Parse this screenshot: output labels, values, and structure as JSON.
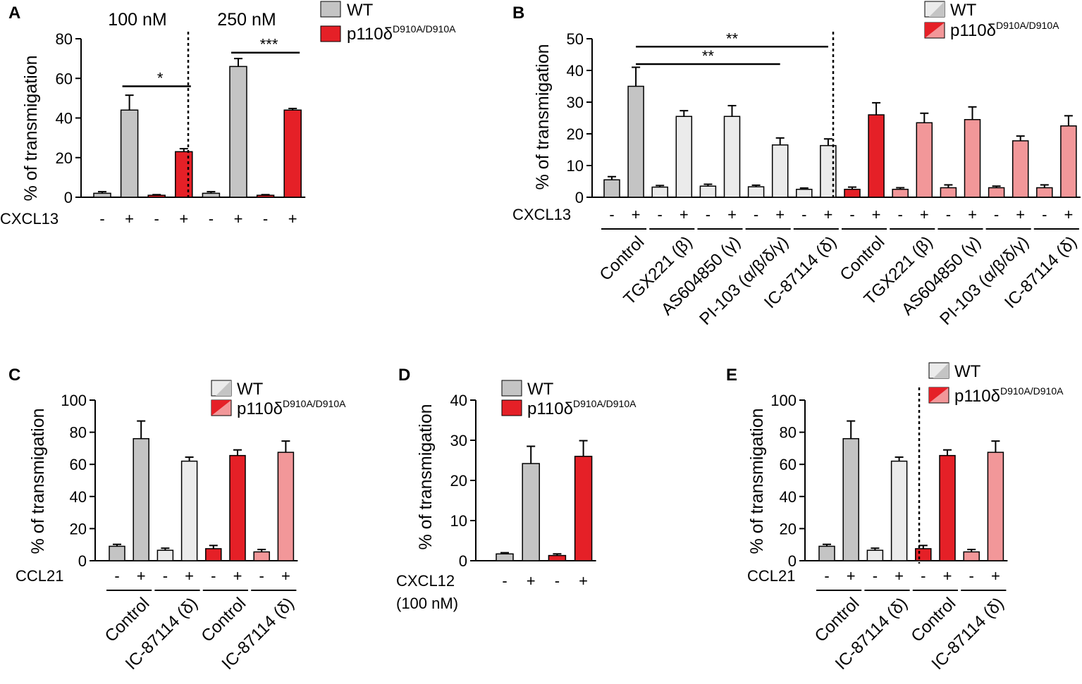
{
  "colors": {
    "wt": "#c4c4c4",
    "wt_inhibitor": "#ebebeb",
    "mut": "#e52027",
    "mut_inhibitor": "#f29799",
    "axis": "#000000"
  },
  "legend": {
    "wt": "WT",
    "mut_base": "p110δ",
    "mut_sup": "D910A/D910A"
  },
  "chart_data": [
    {
      "panel": "A",
      "type": "bar",
      "ylabel": "% of transmigation",
      "ylim": [
        0,
        80
      ],
      "yticks": [
        0,
        20,
        40,
        60,
        80
      ],
      "condition_label": "CXCL13",
      "sections": [
        "100 nM",
        "250 nM"
      ],
      "bars": [
        {
          "sign": "-",
          "value": 2,
          "error": 0.8,
          "group": "wt"
        },
        {
          "sign": "+",
          "value": 44,
          "error": 7.5,
          "group": "wt"
        },
        {
          "sign": "-",
          "value": 1,
          "error": 0.3,
          "group": "mut"
        },
        {
          "sign": "+",
          "value": 23,
          "error": 1.5,
          "group": "mut"
        },
        {
          "sign": "-",
          "value": 2,
          "error": 0.8,
          "group": "wt"
        },
        {
          "sign": "+",
          "value": 66,
          "error": 4,
          "group": "wt"
        },
        {
          "sign": "-",
          "value": 1,
          "error": 0.3,
          "group": "mut"
        },
        {
          "sign": "+",
          "value": 44,
          "error": 0.8,
          "group": "mut"
        }
      ],
      "significance": [
        {
          "label": "*",
          "from_bar": 1,
          "to_bar": 3,
          "y": 56
        },
        {
          "label": "***",
          "from_bar": 5,
          "to_bar": 7,
          "y": 73
        }
      ],
      "dividers_after_bar": [
        3
      ]
    },
    {
      "panel": "B",
      "type": "bar",
      "ylabel": "% of transmigation",
      "ylim": [
        0,
        50
      ],
      "yticks": [
        0,
        10,
        20,
        30,
        40,
        50
      ],
      "condition_label": "CXCL13",
      "groups": [
        "Control",
        "TGX221 (β)",
        "AS604850 (γ)",
        "PI-103 (α/β/δ/γ)",
        "IC-87114 (δ)",
        "Control",
        "TGX221 (β)",
        "AS604850 (γ)",
        "PI-103 (α/β/δ/γ)",
        "IC-87114 (δ)"
      ],
      "bars": [
        {
          "sign": "-",
          "value": 5.5,
          "error": 1,
          "group": "wt"
        },
        {
          "sign": "+",
          "value": 35,
          "error": 6,
          "group": "wt"
        },
        {
          "sign": "-",
          "value": 3.2,
          "error": 0.5,
          "group": "wt_inhibitor"
        },
        {
          "sign": "+",
          "value": 25.5,
          "error": 1.8,
          "group": "wt_inhibitor"
        },
        {
          "sign": "-",
          "value": 3.5,
          "error": 0.6,
          "group": "wt_inhibitor"
        },
        {
          "sign": "+",
          "value": 25.5,
          "error": 3.4,
          "group": "wt_inhibitor"
        },
        {
          "sign": "-",
          "value": 3.3,
          "error": 0.5,
          "group": "wt_inhibitor"
        },
        {
          "sign": "+",
          "value": 16.5,
          "error": 2.2,
          "group": "wt_inhibitor"
        },
        {
          "sign": "-",
          "value": 2.5,
          "error": 0.4,
          "group": "wt_inhibitor"
        },
        {
          "sign": "+",
          "value": 16.3,
          "error": 2.1,
          "group": "wt_inhibitor"
        },
        {
          "sign": "-",
          "value": 2.5,
          "error": 0.7,
          "group": "mut"
        },
        {
          "sign": "+",
          "value": 26,
          "error": 3.8,
          "group": "mut"
        },
        {
          "sign": "-",
          "value": 2.5,
          "error": 0.5,
          "group": "mut_inhibitor"
        },
        {
          "sign": "+",
          "value": 23.5,
          "error": 3,
          "group": "mut_inhibitor"
        },
        {
          "sign": "-",
          "value": 3,
          "error": 0.9,
          "group": "mut_inhibitor"
        },
        {
          "sign": "+",
          "value": 24.5,
          "error": 4,
          "group": "mut_inhibitor"
        },
        {
          "sign": "-",
          "value": 3,
          "error": 0.5,
          "group": "mut_inhibitor"
        },
        {
          "sign": "+",
          "value": 17.8,
          "error": 1.5,
          "group": "mut_inhibitor"
        },
        {
          "sign": "-",
          "value": 3,
          "error": 0.9,
          "group": "mut_inhibitor"
        },
        {
          "sign": "+",
          "value": 22.5,
          "error": 3.2,
          "group": "mut_inhibitor"
        }
      ],
      "significance": [
        {
          "label": "**",
          "from_bar": 1,
          "to_bar": 7,
          "y": 42
        },
        {
          "label": "**",
          "from_bar": 1,
          "to_bar": 9,
          "y": 47.5
        }
      ],
      "dividers_after_bar": [
        9
      ]
    },
    {
      "panel": "C",
      "type": "bar",
      "ylabel": "% of transmigation",
      "ylim": [
        0,
        100
      ],
      "yticks": [
        0,
        20,
        40,
        60,
        80,
        100
      ],
      "condition_label": "CCL21",
      "groups": [
        "Control",
        "IC-87114 (δ)",
        "Control",
        "IC-87114 (δ)"
      ],
      "bars": [
        {
          "sign": "-",
          "value": 9,
          "error": 1.2,
          "group": "wt"
        },
        {
          "sign": "+",
          "value": 76,
          "error": 11,
          "group": "wt"
        },
        {
          "sign": "-",
          "value": 6.5,
          "error": 1.3,
          "group": "wt_inhibitor"
        },
        {
          "sign": "+",
          "value": 62,
          "error": 2.5,
          "group": "wt_inhibitor"
        },
        {
          "sign": "-",
          "value": 7.5,
          "error": 2,
          "group": "mut"
        },
        {
          "sign": "+",
          "value": 65.5,
          "error": 3.5,
          "group": "mut"
        },
        {
          "sign": "-",
          "value": 5.5,
          "error": 1.5,
          "group": "mut_inhibitor"
        },
        {
          "sign": "+",
          "value": 67.5,
          "error": 7,
          "group": "mut_inhibitor"
        }
      ],
      "significance": [],
      "dividers_after_bar": []
    },
    {
      "panel": "D",
      "type": "bar",
      "ylabel": "% of transmigation",
      "ylim": [
        0,
        40
      ],
      "yticks": [
        0,
        10,
        20,
        30,
        40
      ],
      "condition_label": "CXCL12",
      "condition_sublabel": "(100 nM)",
      "bars": [
        {
          "sign": "-",
          "value": 1.7,
          "error": 0.3,
          "group": "wt"
        },
        {
          "sign": "+",
          "value": 24.2,
          "error": 4.3,
          "group": "wt"
        },
        {
          "sign": "-",
          "value": 1.3,
          "error": 0.4,
          "group": "mut"
        },
        {
          "sign": "+",
          "value": 26,
          "error": 3.9,
          "group": "mut"
        }
      ],
      "significance": [],
      "dividers_after_bar": []
    },
    {
      "panel": "E",
      "type": "bar",
      "ylabel": "% of transmigation",
      "ylim": [
        0,
        100
      ],
      "yticks": [
        0,
        20,
        40,
        60,
        80,
        100
      ],
      "condition_label": "CCL21",
      "groups": [
        "Control",
        "IC-87114 (δ)",
        "Control",
        "IC-87114 (δ)"
      ],
      "bars": [
        {
          "sign": "-",
          "value": 9,
          "error": 1.2,
          "group": "wt"
        },
        {
          "sign": "+",
          "value": 76,
          "error": 11,
          "group": "wt"
        },
        {
          "sign": "-",
          "value": 6.5,
          "error": 1.3,
          "group": "wt_inhibitor"
        },
        {
          "sign": "+",
          "value": 62,
          "error": 2.5,
          "group": "wt_inhibitor"
        },
        {
          "sign": "-",
          "value": 7.5,
          "error": 2,
          "group": "mut"
        },
        {
          "sign": "+",
          "value": 65.5,
          "error": 3.5,
          "group": "mut"
        },
        {
          "sign": "-",
          "value": 5.5,
          "error": 1.5,
          "group": "mut_inhibitor"
        },
        {
          "sign": "+",
          "value": 67.5,
          "error": 7,
          "group": "mut_inhibitor"
        }
      ],
      "significance": [],
      "dividers_after_bar": [
        3
      ]
    }
  ]
}
